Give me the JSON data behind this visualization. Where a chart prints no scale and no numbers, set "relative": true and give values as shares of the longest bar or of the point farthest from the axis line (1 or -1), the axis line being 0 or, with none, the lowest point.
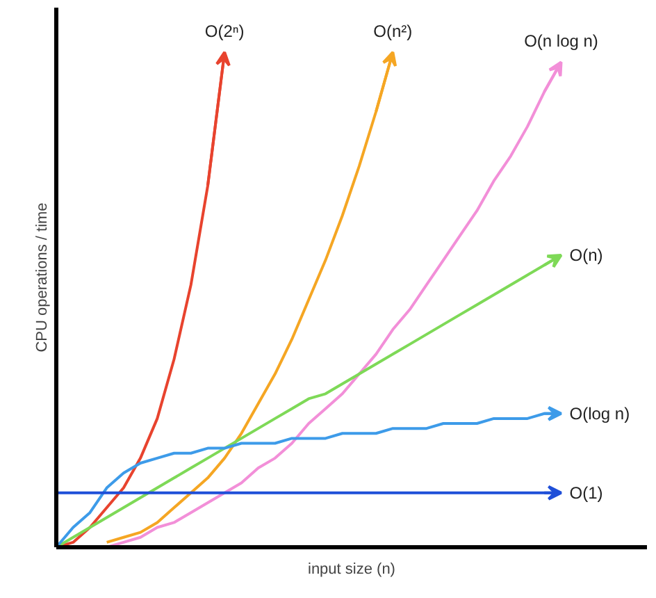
{
  "chart_data": {
    "type": "line",
    "relative": true,
    "xlabel": "input size (n)",
    "ylabel": "CPU operations / time",
    "grid": false,
    "legend": "right",
    "marker": "none",
    "line_style": "solid",
    "categories": [
      null,
      null,
      null,
      null,
      null,
      null,
      null,
      null,
      null,
      null,
      null,
      null,
      null,
      null,
      null,
      null,
      null,
      null,
      null,
      null,
      null,
      null,
      null,
      null,
      null,
      null,
      null,
      null,
      null,
      null,
      null
    ],
    "series": [
      {
        "name": "O(2ⁿ)",
        "color": "#e8432e",
        "values": [
          0,
          0.01,
          0.04,
          0.08,
          0.12,
          0.18,
          0.26,
          0.38,
          0.53,
          0.73,
          1.0,
          null,
          null,
          null,
          null,
          null,
          null,
          null,
          null,
          null,
          null,
          null,
          null,
          null,
          null,
          null,
          null,
          null,
          null,
          null,
          null
        ]
      },
      {
        "name": "O(n²)",
        "color": "#f5a623",
        "values": [
          null,
          null,
          null,
          0.01,
          0.02,
          0.03,
          0.05,
          0.08,
          0.11,
          0.14,
          0.18,
          0.23,
          0.29,
          0.35,
          0.42,
          0.5,
          0.58,
          0.67,
          0.77,
          0.88,
          1.0,
          null,
          null,
          null,
          null,
          null,
          null,
          null,
          null,
          null,
          null
        ]
      },
      {
        "name": "O(n log n)",
        "color": "#f28fd8",
        "values": [
          null,
          null,
          0,
          0,
          0.01,
          0.02,
          0.04,
          0.05,
          0.07,
          0.09,
          0.11,
          0.13,
          0.16,
          0.18,
          0.21,
          0.25,
          0.28,
          0.31,
          0.35,
          0.39,
          0.44,
          0.48,
          0.53,
          0.58,
          0.63,
          0.68,
          0.74,
          0.79,
          0.85,
          0.92,
          0.98
        ]
      },
      {
        "name": "O(n)",
        "color": "#7ed957",
        "values": [
          0,
          0.02,
          0.04,
          0.06,
          0.08,
          0.1,
          0.12,
          0.14,
          0.16,
          0.18,
          0.2,
          0.22,
          0.24,
          0.26,
          0.28,
          0.3,
          0.31,
          0.33,
          0.35,
          0.37,
          0.39,
          0.41,
          0.43,
          0.45,
          0.47,
          0.49,
          0.51,
          0.53,
          0.55,
          0.57,
          0.59
        ]
      },
      {
        "name": "O(log n)",
        "color": "#3d9be9",
        "values": [
          0,
          0.04,
          0.07,
          0.12,
          0.15,
          0.17,
          0.18,
          0.19,
          0.19,
          0.2,
          0.2,
          0.21,
          0.21,
          0.21,
          0.22,
          0.22,
          0.22,
          0.23,
          0.23,
          0.23,
          0.24,
          0.24,
          0.24,
          0.25,
          0.25,
          0.25,
          0.26,
          0.26,
          0.26,
          0.27,
          0.27
        ]
      },
      {
        "name": "O(1)",
        "color": "#1f4fd8",
        "values": [
          0.11,
          0.11,
          0.11,
          0.11,
          0.11,
          0.11,
          0.11,
          0.11,
          0.11,
          0.11,
          0.11,
          0.11,
          0.11,
          0.11,
          0.11,
          0.11,
          0.11,
          0.11,
          0.11,
          0.11,
          0.11,
          0.11,
          0.11,
          0.11,
          0.11,
          0.11,
          0.11,
          0.11,
          0.11,
          0.11,
          0.11
        ]
      }
    ]
  }
}
